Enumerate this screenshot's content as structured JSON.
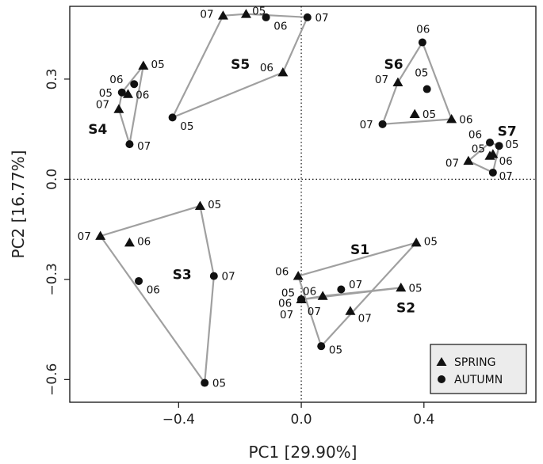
{
  "chart_data": {
    "type": "scatter",
    "xlabel": "PC1 [29.90%]",
    "ylabel": "PC2 [16.77%]",
    "xlim": [
      -0.755,
      0.765
    ],
    "ylim": [
      -0.668,
      0.518
    ],
    "x_ticks": [
      {
        "v": -0.4,
        "label": "−0.4"
      },
      {
        "v": 0,
        "label": "0.0"
      },
      {
        "v": 0.4,
        "label": "0.4"
      }
    ],
    "y_ticks": [
      {
        "v": 0.3,
        "label": "0.3"
      },
      {
        "v": 0,
        "label": "0.0"
      },
      {
        "v": -0.3,
        "label": "−0.3"
      },
      {
        "v": -0.6,
        "label": "−0.6"
      }
    ],
    "reference_lines": {
      "x": 0,
      "y": 0
    },
    "legend": {
      "position": "bottom-right",
      "entries": [
        {
          "marker": "triangle",
          "label": "SPRING"
        },
        {
          "marker": "circle",
          "label": "AUTUMN"
        }
      ]
    },
    "hull_color": "#a0a0a0",
    "sites": [
      {
        "name": "S1",
        "label_pos": [
          0.16,
          -0.21
        ],
        "points": [
          {
            "season": "spring",
            "year": "05",
            "x": 0.375,
            "y": -0.19,
            "lx": 0.025,
            "ly": 0.005
          },
          {
            "season": "spring",
            "year": "06",
            "x": -0.01,
            "y": -0.29,
            "lx": -0.075,
            "ly": 0.015
          },
          {
            "season": "spring",
            "year": "07",
            "x": 0.16,
            "y": -0.395,
            "lx": 0.025,
            "ly": -0.02
          },
          {
            "season": "autumn",
            "year": "05",
            "x": 0.065,
            "y": -0.5,
            "lx": 0.025,
            "ly": -0.01
          }
        ],
        "hull": [
          [
            0.375,
            -0.19
          ],
          [
            -0.01,
            -0.29
          ],
          [
            0.065,
            -0.5
          ]
        ]
      },
      {
        "name": "S2",
        "label_pos": [
          0.31,
          -0.385
        ],
        "points": [
          {
            "season": "spring",
            "year": "05",
            "x": 0.325,
            "y": -0.325,
            "lx": 0.025,
            "ly": 0.0
          },
          {
            "season": "spring",
            "year": "06",
            "x": 0.07,
            "y": -0.35,
            "lx": -0.065,
            "ly": 0.015
          },
          {
            "season": "spring",
            "year": "06",
            "x": 0.0,
            "y": -0.36,
            "lx": -0.075,
            "ly": -0.01
          },
          {
            "season": "spring",
            "year": "05",
            "x": 0.0,
            "y": -0.36,
            "lx": -0.065,
            "ly": 0.02
          },
          {
            "season": "autumn",
            "year": "07",
            "x": 0.13,
            "y": -0.33,
            "lx": 0.025,
            "ly": 0.015
          },
          {
            "season": "autumn",
            "year": "07",
            "x": 0.0,
            "y": -0.36,
            "lx": 0.02,
            "ly": -0.035
          },
          {
            "season": "autumn",
            "year": "07",
            "x": 0.0,
            "y": -0.36,
            "lx": -0.07,
            "ly": -0.045
          }
        ],
        "hull": [
          [
            0.325,
            -0.325
          ],
          [
            0.07,
            -0.35
          ],
          [
            0.0,
            -0.36
          ]
        ]
      },
      {
        "name": "S3",
        "label_pos": [
          -0.42,
          -0.285
        ],
        "points": [
          {
            "season": "spring",
            "year": "05",
            "x": -0.33,
            "y": -0.08,
            "lx": 0.025,
            "ly": 0.005
          },
          {
            "season": "spring",
            "year": "07",
            "x": -0.655,
            "y": -0.17,
            "lx": -0.075,
            "ly": 0.0
          },
          {
            "season": "spring",
            "year": "06",
            "x": -0.56,
            "y": -0.19,
            "lx": 0.025,
            "ly": 0.005
          },
          {
            "season": "autumn",
            "year": "07",
            "x": -0.285,
            "y": -0.29,
            "lx": 0.025,
            "ly": 0.0
          },
          {
            "season": "autumn",
            "year": "06",
            "x": -0.53,
            "y": -0.305,
            "lx": 0.025,
            "ly": -0.025
          },
          {
            "season": "autumn",
            "year": "05",
            "x": -0.315,
            "y": -0.61,
            "lx": 0.025,
            "ly": 0.0
          }
        ],
        "hull": [
          [
            -0.33,
            -0.08
          ],
          [
            -0.655,
            -0.17
          ],
          [
            -0.315,
            -0.61
          ],
          [
            -0.285,
            -0.29
          ]
        ]
      },
      {
        "name": "S4",
        "label_pos": [
          -0.695,
          0.15
        ],
        "points": [
          {
            "season": "spring",
            "year": "05",
            "x": -0.515,
            "y": 0.34,
            "lx": 0.025,
            "ly": 0.005
          },
          {
            "season": "spring",
            "year": "06",
            "x": -0.565,
            "y": 0.255,
            "lx": 0.025,
            "ly": -0.002
          },
          {
            "season": "spring",
            "year": "07",
            "x": -0.595,
            "y": 0.21,
            "lx": -0.075,
            "ly": 0.015
          },
          {
            "season": "autumn",
            "year": "06",
            "x": -0.545,
            "y": 0.285,
            "lx": -0.08,
            "ly": 0.015
          },
          {
            "season": "autumn",
            "year": "05",
            "x": -0.585,
            "y": 0.26,
            "lx": -0.075,
            "ly": 0.0
          },
          {
            "season": "autumn",
            "year": "07",
            "x": -0.56,
            "y": 0.105,
            "lx": 0.025,
            "ly": -0.005
          }
        ],
        "hull": [
          [
            -0.515,
            0.34
          ],
          [
            -0.585,
            0.26
          ],
          [
            -0.595,
            0.21
          ],
          [
            -0.56,
            0.105
          ]
        ]
      },
      {
        "name": "S5",
        "label_pos": [
          -0.23,
          0.345
        ],
        "points": [
          {
            "season": "spring",
            "year": "07",
            "x": -0.255,
            "y": 0.49,
            "lx": -0.075,
            "ly": 0.005
          },
          {
            "season": "spring",
            "year": "05",
            "x": -0.18,
            "y": 0.495,
            "lx": 0.02,
            "ly": 0.01
          },
          {
            "season": "spring",
            "year": "06",
            "x": -0.06,
            "y": 0.32,
            "lx": -0.075,
            "ly": 0.015
          },
          {
            "season": "autumn",
            "year": "06",
            "x": -0.115,
            "y": 0.485,
            "lx": 0.025,
            "ly": -0.025
          },
          {
            "season": "autumn",
            "year": "07",
            "x": 0.02,
            "y": 0.485,
            "lx": 0.025,
            "ly": 0.0
          },
          {
            "season": "autumn",
            "year": "05",
            "x": -0.42,
            "y": 0.185,
            "lx": 0.025,
            "ly": -0.025
          }
        ],
        "hull": [
          [
            -0.255,
            0.49
          ],
          [
            -0.18,
            0.495
          ],
          [
            0.02,
            0.485
          ],
          [
            -0.06,
            0.32
          ],
          [
            -0.42,
            0.185
          ]
        ]
      },
      {
        "name": "S6",
        "label_pos": [
          0.27,
          0.345
        ],
        "points": [
          {
            "season": "spring",
            "year": "07",
            "x": 0.315,
            "y": 0.29,
            "lx": -0.075,
            "ly": 0.01
          },
          {
            "season": "spring",
            "year": "05",
            "x": 0.37,
            "y": 0.195,
            "lx": 0.025,
            "ly": 0.0
          },
          {
            "season": "spring",
            "year": "06",
            "x": 0.49,
            "y": 0.18,
            "lx": 0.025,
            "ly": 0.0
          },
          {
            "season": "autumn",
            "year": "06",
            "x": 0.395,
            "y": 0.41,
            "lx": -0.02,
            "ly": 0.04
          },
          {
            "season": "autumn",
            "year": "05",
            "x": 0.41,
            "y": 0.27,
            "lx": -0.04,
            "ly": 0.05
          },
          {
            "season": "autumn",
            "year": "07",
            "x": 0.265,
            "y": 0.165,
            "lx": -0.075,
            "ly": 0.0
          }
        ],
        "hull": [
          [
            0.395,
            0.41
          ],
          [
            0.49,
            0.18
          ],
          [
            0.265,
            0.165
          ],
          [
            0.315,
            0.29
          ]
        ]
      },
      {
        "name": "S7",
        "label_pos": [
          0.64,
          0.145
        ],
        "points": [
          {
            "season": "spring",
            "year": "07",
            "x": 0.545,
            "y": 0.055,
            "lx": -0.075,
            "ly": -0.005
          },
          {
            "season": "spring",
            "year": "05",
            "x": 0.615,
            "y": 0.07,
            "lx": -0.06,
            "ly": 0.022
          },
          {
            "season": "spring",
            "year": "06",
            "x": 0.625,
            "y": 0.075,
            "lx": 0.02,
            "ly": -0.02
          },
          {
            "season": "autumn",
            "year": "06",
            "x": 0.615,
            "y": 0.11,
            "lx": -0.07,
            "ly": 0.025
          },
          {
            "season": "autumn",
            "year": "05",
            "x": 0.645,
            "y": 0.1,
            "lx": 0.02,
            "ly": 0.005
          },
          {
            "season": "autumn",
            "year": "07",
            "x": 0.625,
            "y": 0.02,
            "lx": 0.02,
            "ly": -0.01
          }
        ],
        "hull": [
          [
            0.615,
            0.11
          ],
          [
            0.645,
            0.1
          ],
          [
            0.625,
            0.02
          ],
          [
            0.545,
            0.055
          ]
        ]
      }
    ]
  }
}
